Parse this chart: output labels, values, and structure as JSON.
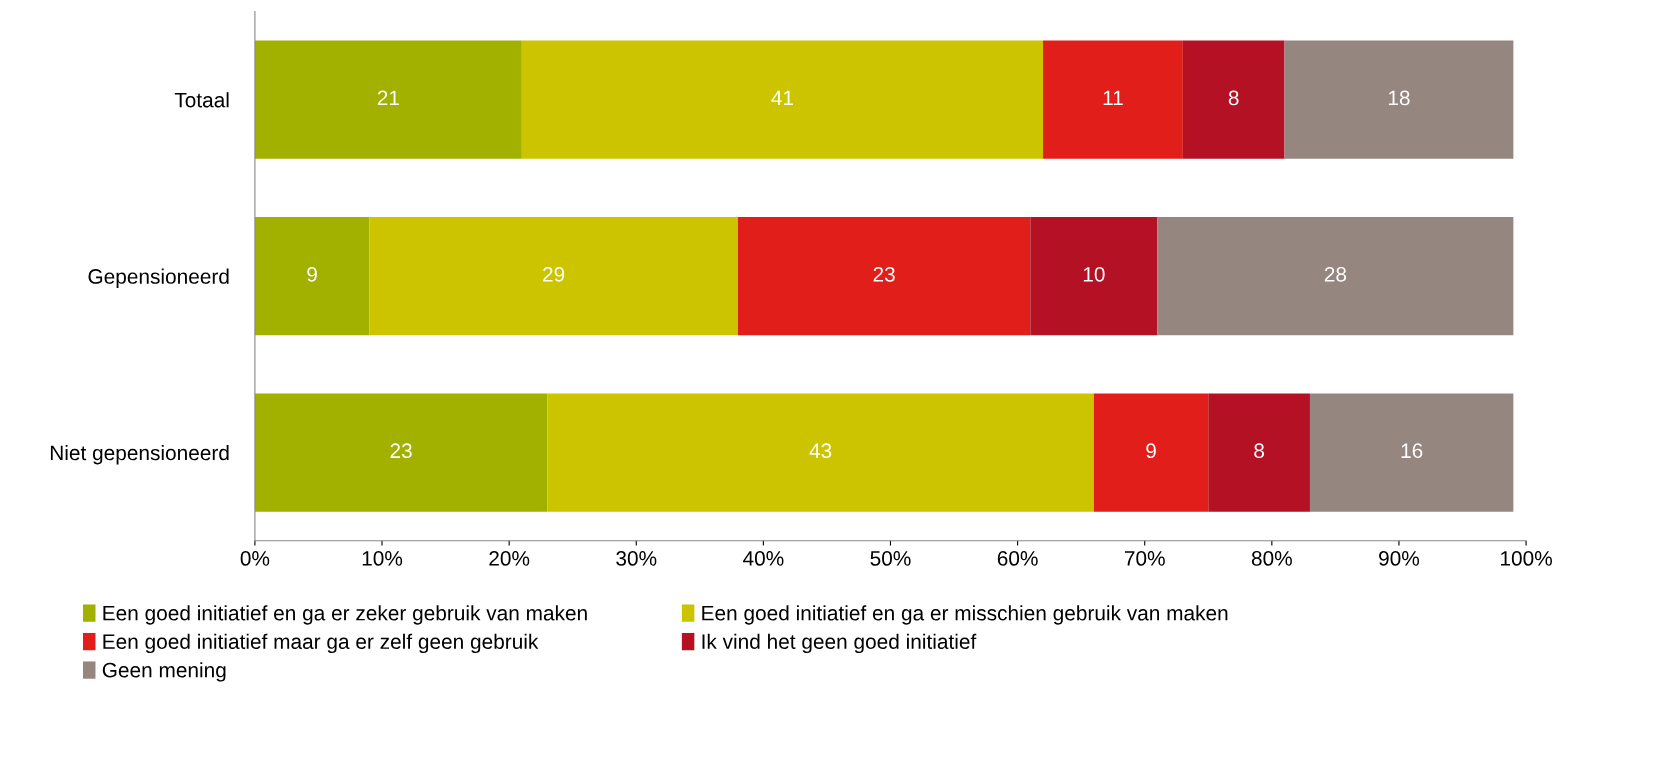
{
  "chart_data": {
    "type": "bar",
    "orientation": "horizontal",
    "stacked": true,
    "data_labels": true,
    "grid": false,
    "legend": "bottom",
    "categories": [
      "Totaal",
      "Gepensioneerd",
      "Niet gepensioneerd"
    ],
    "series": [
      {
        "name": "Een goed initiatief en ga er zeker gebruik van maken",
        "color": "#a2b000",
        "values": [
          21,
          9,
          23
        ]
      },
      {
        "name": "Een goed initiatief en ga er misschien gebruik van maken",
        "color": "#cdc400",
        "values": [
          41,
          29,
          43
        ]
      },
      {
        "name": "Een goed initiatief maar ga er zelf geen gebruik",
        "color": "#e21e1a",
        "values": [
          11,
          23,
          9
        ]
      },
      {
        "name": "Ik vind het geen goed initiatief",
        "color": "#b41224",
        "values": [
          8,
          10,
          8
        ]
      },
      {
        "name": "Geen mening",
        "color": "#958780",
        "values": [
          18,
          28,
          16
        ]
      }
    ],
    "xlim": [
      0,
      100
    ],
    "xticks": [
      {
        "value": 0,
        "label": "0%"
      },
      {
        "value": 10,
        "label": "10%"
      },
      {
        "value": 20,
        "label": "20%"
      },
      {
        "value": 30,
        "label": "30%"
      },
      {
        "value": 40,
        "label": "40%"
      },
      {
        "value": 50,
        "label": "50%"
      },
      {
        "value": 60,
        "label": "60%"
      },
      {
        "value": 70,
        "label": "70%"
      },
      {
        "value": 80,
        "label": "80%"
      },
      {
        "value": 90,
        "label": "90%"
      },
      {
        "value": 100,
        "label": "100%"
      }
    ]
  }
}
